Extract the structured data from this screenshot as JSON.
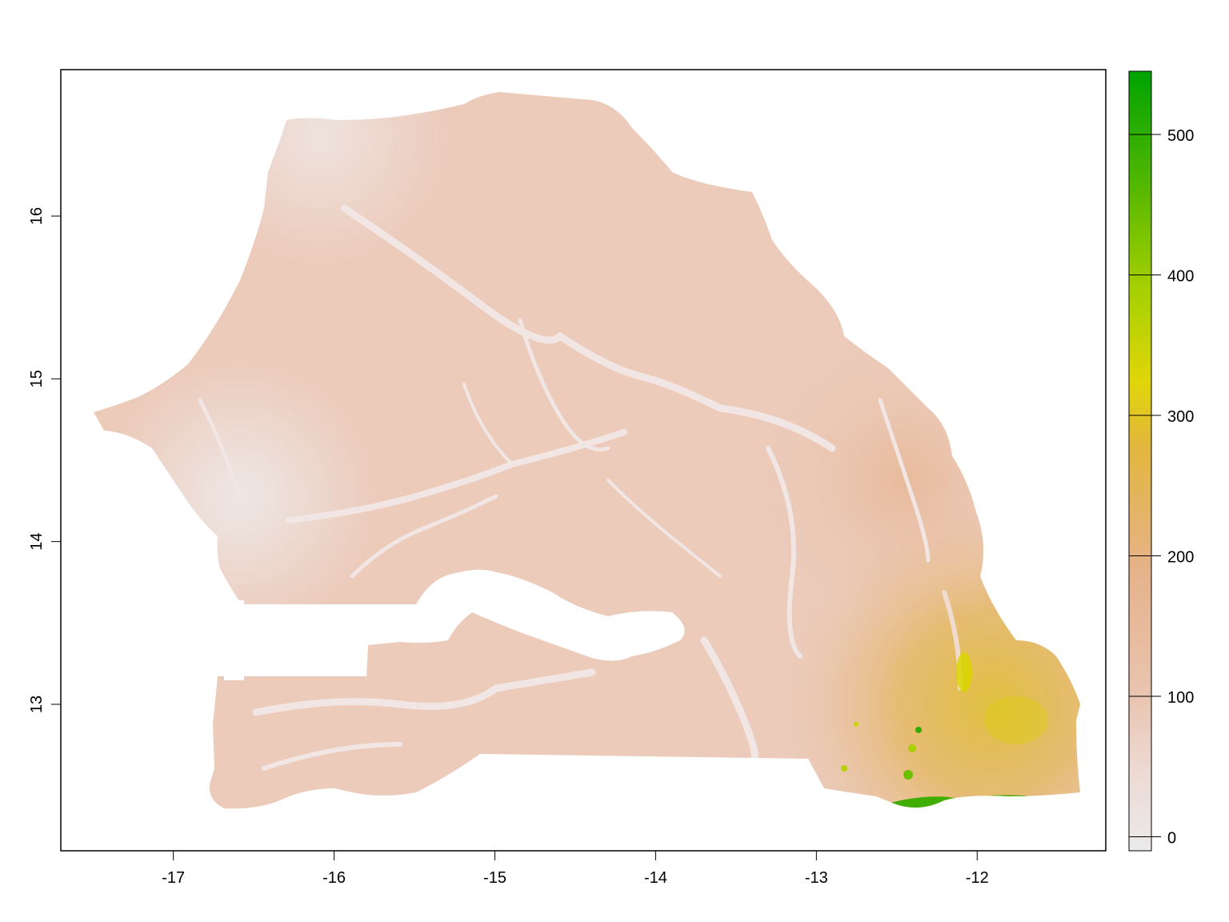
{
  "map": {
    "x_ticks": [
      "-17",
      "-16",
      "-15",
      "-14",
      "-13",
      "-12"
    ],
    "y_ticks": [
      "13",
      "14",
      "15",
      "16"
    ],
    "xlim": [
      -17.7,
      -11.2
    ],
    "ylim": [
      12.1,
      16.9
    ]
  },
  "legend": {
    "ticks": [
      "0",
      "100",
      "200",
      "300",
      "400",
      "500"
    ],
    "range": [
      -10,
      545
    ],
    "colors": {
      "low": "#ebeaea",
      "mid_low": "#e8b49a",
      "mid": "#e2b23a",
      "mid_high": "#dcdc00",
      "high": "#00a300"
    }
  },
  "chart_data": {
    "type": "heatmap",
    "title": "",
    "xlabel": "",
    "ylabel": "",
    "x": [
      -17,
      -16,
      -15,
      -14,
      -13,
      -12
    ],
    "y": [
      13,
      14,
      15,
      16
    ],
    "value_range": [
      0,
      540
    ],
    "colorbar_ticks": [
      0,
      100,
      200,
      300,
      400,
      500
    ]
  }
}
